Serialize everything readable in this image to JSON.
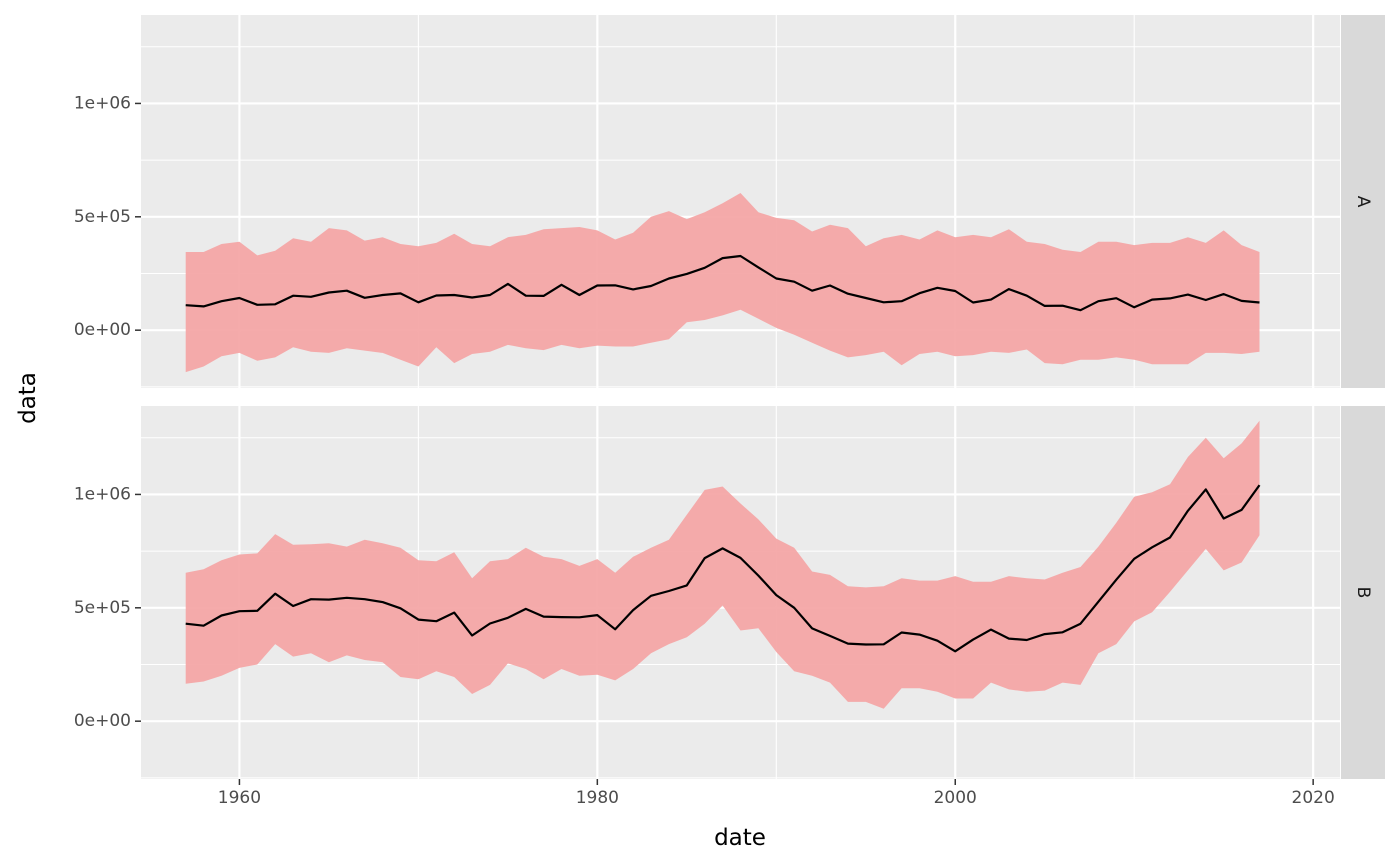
{
  "chart_data": {
    "type": "line",
    "facet_layout": "vertical",
    "xlabel": "date",
    "ylabel": "data",
    "x_ticks": [
      1960,
      1980,
      2000,
      2020
    ],
    "x_tick_labels": [
      "1960",
      "1980",
      "2000",
      "2020"
    ],
    "xlim": [
      1954.5,
      2021.5
    ],
    "y_ticks": [
      0,
      500000,
      1000000
    ],
    "y_tick_labels": [
      "0e+00",
      "5e+05",
      "1e+06"
    ],
    "ylim": [
      -255000,
      1390000
    ],
    "grid": true,
    "legend": "none",
    "colors": {
      "line": "#000000",
      "band": "#f4a6a6",
      "panel": "#ebebeb",
      "strip": "#d9d9d9",
      "grid": "#ffffff"
    },
    "x": [
      1957,
      1958,
      1959,
      1960,
      1961,
      1962,
      1963,
      1964,
      1965,
      1966,
      1967,
      1968,
      1969,
      1970,
      1971,
      1972,
      1973,
      1974,
      1975,
      1976,
      1977,
      1978,
      1979,
      1980,
      1981,
      1982,
      1983,
      1984,
      1985,
      1986,
      1987,
      1988,
      1989,
      1990,
      1991,
      1992,
      1993,
      1994,
      1995,
      1996,
      1997,
      1998,
      1999,
      2000,
      2001,
      2002,
      2003,
      2004,
      2005,
      2006,
      2007,
      2008,
      2009,
      2010,
      2011,
      2012,
      2013,
      2014,
      2015,
      2016,
      2017
    ],
    "panels": [
      {
        "strip": "A",
        "value": [
          110000,
          105000,
          128000,
          142000,
          112000,
          114000,
          152000,
          147000,
          166000,
          174000,
          143000,
          155000,
          162000,
          123000,
          153000,
          155000,
          144000,
          155000,
          204000,
          152000,
          151000,
          200000,
          155000,
          197000,
          198000,
          180000,
          195000,
          228000,
          248000,
          275000,
          318000,
          327000,
          277000,
          228000,
          214000,
          174000,
          197000,
          161000,
          142000,
          123000,
          128000,
          163000,
          187000,
          173000,
          122000,
          135000,
          181000,
          152000,
          107000,
          108000,
          88000,
          128000,
          141000,
          101000,
          135000,
          140000,
          157000,
          133000,
          159000,
          129000,
          122000
        ],
        "lower": [
          -185000,
          -160000,
          -115000,
          -100000,
          -135000,
          -120000,
          -75000,
          -95000,
          -100000,
          -80000,
          -90000,
          -100000,
          -130000,
          -160000,
          -75000,
          -145000,
          -105000,
          -95000,
          -65000,
          -80000,
          -88000,
          -65000,
          -80000,
          -68000,
          -72000,
          -72000,
          -55000,
          -40000,
          35000,
          45000,
          65000,
          90000,
          50000,
          10000,
          -20000,
          -55000,
          -90000,
          -120000,
          -110000,
          -95000,
          -155000,
          -105000,
          -95000,
          -115000,
          -110000,
          -95000,
          -100000,
          -85000,
          -145000,
          -150000,
          -130000,
          -130000,
          -120000,
          -130000,
          -150000,
          -150000,
          -150000,
          -100000,
          -100000,
          -105000,
          -95000
        ],
        "upper": [
          345000,
          345000,
          380000,
          390000,
          330000,
          350000,
          405000,
          390000,
          450000,
          440000,
          395000,
          410000,
          380000,
          370000,
          385000,
          425000,
          380000,
          370000,
          410000,
          420000,
          445000,
          450000,
          455000,
          440000,
          400000,
          430000,
          500000,
          525000,
          490000,
          520000,
          560000,
          605000,
          520000,
          495000,
          485000,
          435000,
          465000,
          450000,
          370000,
          405000,
          420000,
          400000,
          440000,
          410000,
          420000,
          410000,
          445000,
          390000,
          380000,
          355000,
          345000,
          390000,
          390000,
          375000,
          385000,
          385000,
          410000,
          385000,
          440000,
          375000,
          345000
        ]
      },
      {
        "strip": "B",
        "value": [
          430000,
          421000,
          466000,
          485000,
          487000,
          562000,
          508000,
          538000,
          536000,
          544000,
          538000,
          525000,
          498000,
          448000,
          441000,
          479000,
          378000,
          431000,
          456000,
          495000,
          461000,
          459000,
          458000,
          468000,
          405000,
          490000,
          553000,
          574000,
          599000,
          719000,
          762000,
          720000,
          642000,
          556000,
          500000,
          409000,
          376000,
          342000,
          338000,
          339000,
          391000,
          382000,
          355000,
          308000,
          360000,
          404000,
          364000,
          358000,
          384000,
          392000,
          430000,
          527000,
          624000,
          716000,
          767000,
          810000,
          928000,
          1022000,
          894000,
          932000,
          1041000
        ],
        "lower": [
          165000,
          175000,
          200000,
          235000,
          250000,
          340000,
          285000,
          300000,
          260000,
          290000,
          270000,
          260000,
          195000,
          185000,
          220000,
          195000,
          120000,
          160000,
          255000,
          230000,
          185000,
          230000,
          200000,
          205000,
          180000,
          230000,
          300000,
          340000,
          370000,
          430000,
          510000,
          400000,
          410000,
          305000,
          220000,
          200000,
          170000,
          85000,
          85000,
          55000,
          145000,
          145000,
          130000,
          100000,
          100000,
          170000,
          140000,
          130000,
          135000,
          170000,
          160000,
          300000,
          340000,
          440000,
          480000,
          570000,
          665000,
          760000,
          665000,
          700000,
          820000
        ],
        "upper": [
          655000,
          670000,
          710000,
          735000,
          740000,
          825000,
          778000,
          780000,
          785000,
          770000,
          800000,
          785000,
          765000,
          710000,
          705000,
          745000,
          630000,
          705000,
          715000,
          765000,
          725000,
          715000,
          685000,
          715000,
          655000,
          725000,
          765000,
          800000,
          910000,
          1020000,
          1035000,
          960000,
          890000,
          805000,
          765000,
          660000,
          645000,
          595000,
          590000,
          595000,
          630000,
          620000,
          620000,
          640000,
          615000,
          615000,
          640000,
          630000,
          625000,
          655000,
          680000,
          770000,
          875000,
          990000,
          1010000,
          1045000,
          1165000,
          1250000,
          1160000,
          1225000,
          1325000
        ]
      }
    ]
  }
}
